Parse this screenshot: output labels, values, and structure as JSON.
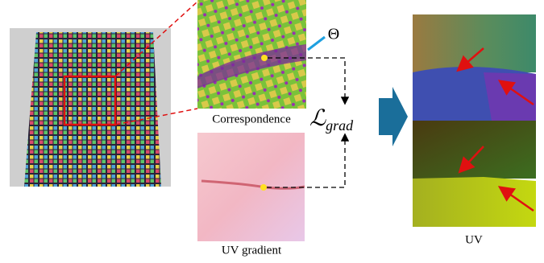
{
  "labels": {
    "theta": "Θ",
    "correspondence": "Correspondence",
    "loss": "ℒ",
    "loss_subscript": "grad",
    "uv_gradient": "UV gradient",
    "uv": "UV"
  }
}
